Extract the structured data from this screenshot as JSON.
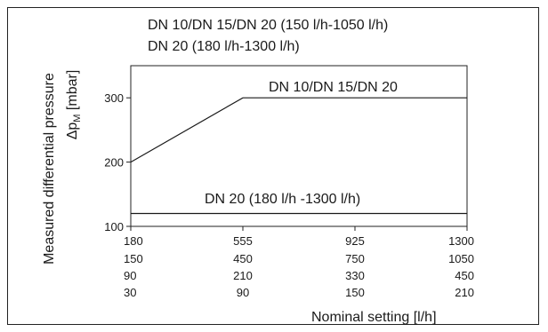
{
  "chart_data": {
    "type": "line",
    "title_lines": [
      "DN 10/DN 15/DN 20 (150 l/h-1050 l/h)",
      "DN 20 (180 l/h-1300 l/h)"
    ],
    "ylabel_line1": "Measured differential pressure",
    "ylabel_line2": "Δp",
    "ylabel_sub": "M",
    "ylabel_unit": " [mbar]",
    "xlabel": "Nominal setting [l/h]",
    "ylim": [
      100,
      350
    ],
    "yticks": [
      "100",
      "200",
      "300"
    ],
    "x_positions": [
      0,
      1,
      2,
      3
    ],
    "x_label_rows": [
      [
        "180",
        "555",
        "925",
        "1300"
      ],
      [
        "150",
        "450",
        "750",
        "1050"
      ],
      [
        "90",
        "210",
        "330",
        "450"
      ],
      [
        "30",
        "90",
        "150",
        "210"
      ]
    ],
    "series": [
      {
        "name": "DN 10/DN 15/DN 20",
        "x": [
          0,
          1,
          3
        ],
        "y": [
          200,
          300,
          300
        ]
      },
      {
        "name": "DN 20 (180 l/h -1300 l/h)",
        "x": [
          0,
          3
        ],
        "y": [
          120,
          120
        ]
      }
    ],
    "grid": false
  }
}
